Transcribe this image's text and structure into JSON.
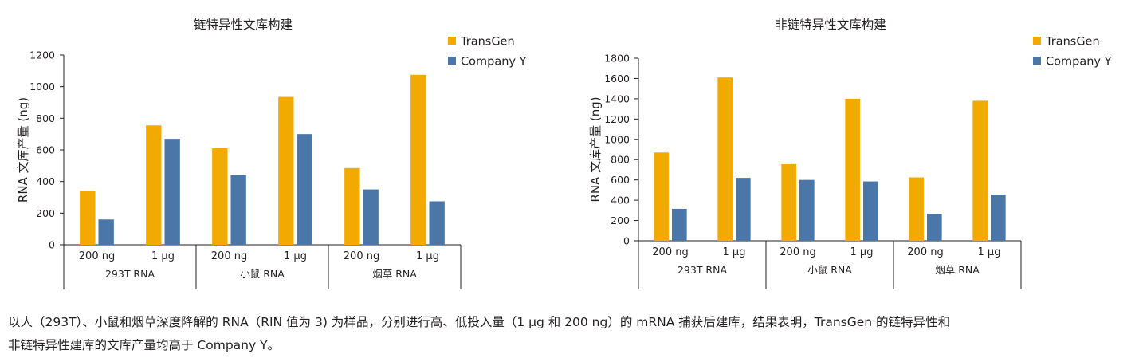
{
  "colors": {
    "TransGen": "#f2a900",
    "Company Y": "#4a76a8",
    "axis": "#231f20"
  },
  "chart_data": [
    {
      "type": "bar",
      "title": "链特异性文库构建",
      "ylabel": "RNA 文库产量 (ng)",
      "ylim": [
        0,
        1200
      ],
      "yticks": [
        0,
        200,
        400,
        600,
        800,
        1000,
        1200
      ],
      "legend": "top-right",
      "groups": [
        "293T RNA",
        "小鼠 RNA",
        "烟草 RNA"
      ],
      "categories": [
        "200 ng",
        "1 μg",
        "200 ng",
        "1 μg",
        "200 ng",
        "1 μg"
      ],
      "series": [
        {
          "name": "TransGen",
          "values": [
            340,
            755,
            610,
            935,
            485,
            1075
          ]
        },
        {
          "name": "Company Y",
          "values": [
            160,
            670,
            440,
            700,
            350,
            275
          ]
        }
      ]
    },
    {
      "type": "bar",
      "title": "非链特异性文库构建",
      "ylabel": "RNA 文库产量 (ng)",
      "ylim": [
        0,
        1800
      ],
      "yticks": [
        0,
        200,
        400,
        600,
        800,
        1000,
        1200,
        1400,
        1600,
        1800
      ],
      "legend": "top-right",
      "groups": [
        "293T RNA",
        "小鼠 RNA",
        "烟草 RNA"
      ],
      "categories": [
        "200 ng",
        "1 μg",
        "200 ng",
        "1 μg",
        "200 ng",
        "1 μg"
      ],
      "series": [
        {
          "name": "TransGen",
          "values": [
            870,
            1610,
            755,
            1400,
            625,
            1380
          ]
        },
        {
          "name": "Company Y",
          "values": [
            315,
            620,
            600,
            585,
            265,
            455
          ]
        }
      ]
    }
  ],
  "caption": {
    "line1": "以人（293T）、小鼠和烟草深度降解的 RNA（RIN 值为 3) 为样品，分别进行高、低投入量（1 μg 和 200 ng）的 mRNA 捕获后建库，结果表明，TransGen 的链特异性和",
    "line2": "非链特异性建库的文库产量均高于 Company Y。"
  }
}
